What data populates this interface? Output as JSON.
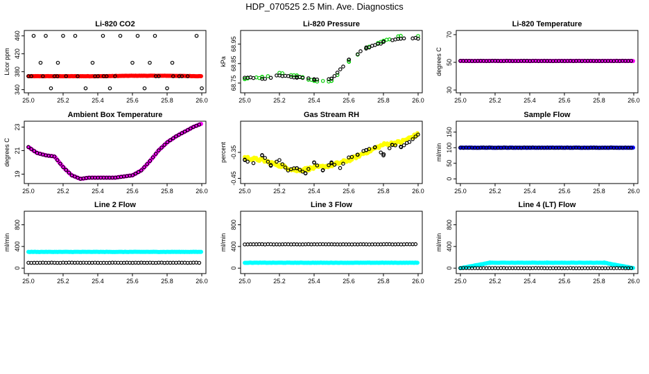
{
  "title": "HDP_070525  2.5 Min. Ave. Diagnostics",
  "chart_data": [
    {
      "type": "scatter",
      "title": "Li-820 CO2",
      "ylabel": "Licor ppm",
      "xlim": [
        25.0,
        26.0
      ],
      "ylim": [
        333,
        472
      ],
      "x_ticks": [
        "25.0",
        "25.2",
        "25.4",
        "25.6",
        "25.8",
        "26.0"
      ],
      "y_ticks": [
        340,
        380,
        420,
        460
      ],
      "series": [
        {
          "color": "#ff0000",
          "style": "filled",
          "values": [
            [
              25.0,
              370
            ],
            [
              25.2,
              370
            ],
            [
              25.4,
              370
            ],
            [
              25.6,
              371
            ],
            [
              25.8,
              371
            ],
            [
              26.0,
              370
            ]
          ]
        },
        {
          "color": "#000000",
          "style": "open",
          "values": [
            [
              25.0,
              370
            ],
            [
              25.03,
              460
            ],
            [
              25.07,
              400
            ],
            [
              25.1,
              460
            ],
            [
              25.13,
              343
            ],
            [
              25.17,
              400
            ],
            [
              25.2,
              460
            ],
            [
              25.27,
              460
            ],
            [
              25.33,
              343
            ],
            [
              25.37,
              400
            ],
            [
              25.43,
              460
            ],
            [
              25.47,
              343
            ],
            [
              25.5,
              370
            ],
            [
              25.53,
              460
            ],
            [
              25.6,
              400
            ],
            [
              25.63,
              460
            ],
            [
              25.67,
              343
            ],
            [
              25.7,
              400
            ],
            [
              25.73,
              460
            ],
            [
              25.8,
              343
            ],
            [
              25.83,
              400
            ],
            [
              25.87,
              370
            ],
            [
              25.97,
              460
            ],
            [
              26.0,
              343
            ]
          ]
        }
      ]
    },
    {
      "type": "scatter",
      "title": "Li-820 Pressure",
      "ylabel": "kPa",
      "xlim": [
        25.0,
        26.0
      ],
      "ylim": [
        68.7,
        69.02
      ],
      "x_ticks": [
        "25.0",
        "25.2",
        "25.4",
        "25.6",
        "25.8",
        "26.0"
      ],
      "y_ticks": [
        "68.75",
        "68.85",
        "68.95"
      ],
      "series": [
        {
          "color": "#00cc00",
          "style": "open",
          "values": [
            [
              25.0,
              68.77
            ],
            [
              25.1,
              68.78
            ],
            [
              25.2,
              68.8
            ],
            [
              25.3,
              68.79
            ],
            [
              25.4,
              68.76
            ],
            [
              25.5,
              68.76
            ],
            [
              25.6,
              68.86
            ],
            [
              25.7,
              68.93
            ],
            [
              25.8,
              68.97
            ],
            [
              25.9,
              68.99
            ],
            [
              26.0,
              68.99
            ]
          ]
        },
        {
          "color": "#000000",
          "style": "open",
          "values": [
            [
              25.0,
              68.78
            ],
            [
              25.1,
              68.77
            ],
            [
              25.2,
              68.79
            ],
            [
              25.3,
              68.78
            ],
            [
              25.4,
              68.77
            ],
            [
              25.5,
              68.77
            ],
            [
              25.6,
              68.87
            ],
            [
              25.7,
              68.93
            ],
            [
              25.8,
              68.96
            ],
            [
              25.9,
              68.98
            ],
            [
              26.0,
              68.98
            ]
          ]
        }
      ]
    },
    {
      "type": "scatter",
      "title": "Li-820 Temperature",
      "ylabel": "degrees C",
      "xlim": [
        25.0,
        26.0
      ],
      "ylim": [
        28,
        73
      ],
      "x_ticks": [
        "25.0",
        "25.2",
        "25.4",
        "25.6",
        "25.8",
        "26.0"
      ],
      "y_ticks": [
        30,
        50,
        70
      ],
      "series": [
        {
          "color": "#ff00ff",
          "style": "filled",
          "values": [
            [
              25.0,
              51.0
            ],
            [
              26.0,
              51.0
            ]
          ]
        },
        {
          "color": "#000000",
          "style": "open",
          "values": [
            [
              25.0,
              51.0
            ],
            [
              26.0,
              51.0
            ]
          ]
        }
      ]
    },
    {
      "type": "scatter",
      "title": "Ambient Box Temperature",
      "ylabel": "degrees C",
      "xlim": [
        25.0,
        26.0
      ],
      "ylim": [
        18.2,
        23.5
      ],
      "x_ticks": [
        "25.0",
        "25.2",
        "25.4",
        "25.6",
        "25.8",
        "26.0"
      ],
      "y_ticks": [
        19,
        21,
        23
      ],
      "series": [
        {
          "color": "#ff00ff",
          "style": "filled",
          "values": [
            [
              25.0,
              21.3
            ],
            [
              25.05,
              20.8
            ],
            [
              25.1,
              20.6
            ],
            [
              25.15,
              20.5
            ],
            [
              25.2,
              19.6
            ],
            [
              25.25,
              18.9
            ],
            [
              25.3,
              18.6
            ],
            [
              25.35,
              18.7
            ],
            [
              25.4,
              18.7
            ],
            [
              25.5,
              18.7
            ],
            [
              25.6,
              18.9
            ],
            [
              25.65,
              19.3
            ],
            [
              25.7,
              20.1
            ],
            [
              25.75,
              21.0
            ],
            [
              25.8,
              21.7
            ],
            [
              25.85,
              22.2
            ],
            [
              25.9,
              22.6
            ],
            [
              25.95,
              23.0
            ],
            [
              26.0,
              23.3
            ]
          ]
        },
        {
          "color": "#000000",
          "style": "open",
          "values": [
            [
              25.0,
              21.3
            ],
            [
              25.05,
              20.8
            ],
            [
              25.1,
              20.6
            ],
            [
              25.15,
              20.5
            ],
            [
              25.2,
              19.6
            ],
            [
              25.25,
              18.9
            ],
            [
              25.3,
              18.6
            ],
            [
              25.35,
              18.7
            ],
            [
              25.4,
              18.7
            ],
            [
              25.5,
              18.7
            ],
            [
              25.6,
              18.9
            ],
            [
              25.65,
              19.3
            ],
            [
              25.7,
              20.1
            ],
            [
              25.75,
              21.0
            ],
            [
              25.8,
              21.7
            ],
            [
              25.85,
              22.2
            ],
            [
              25.9,
              22.6
            ],
            [
              25.95,
              23.0
            ],
            [
              26.0,
              23.3
            ]
          ]
        }
      ]
    },
    {
      "type": "scatter",
      "title": "Gas Stream RH",
      "ylabel": "percent",
      "xlim": [
        25.0,
        26.0
      ],
      "ylim": [
        -0.47,
        -0.23
      ],
      "x_ticks": [
        "25.0",
        "25.2",
        "25.4",
        "25.6",
        "25.8",
        "26.0"
      ],
      "y_ticks": [
        "-0.45",
        "-0.35"
      ],
      "series": [
        {
          "color": "#ffff00",
          "style": "filled",
          "values": [
            [
              25.0,
              -0.37
            ],
            [
              25.1,
              -0.38
            ],
            [
              25.2,
              -0.4
            ],
            [
              25.3,
              -0.42
            ],
            [
              25.4,
              -0.41
            ],
            [
              25.5,
              -0.4
            ],
            [
              25.6,
              -0.38
            ],
            [
              25.7,
              -0.35
            ],
            [
              25.8,
              -0.32
            ],
            [
              25.9,
              -0.31
            ],
            [
              26.0,
              -0.28
            ]
          ]
        },
        {
          "color": "#000000",
          "style": "open",
          "values": [
            [
              25.0,
              -0.38
            ],
            [
              25.05,
              -0.39
            ],
            [
              25.1,
              -0.36
            ],
            [
              25.15,
              -0.4
            ],
            [
              25.2,
              -0.38
            ],
            [
              25.25,
              -0.42
            ],
            [
              25.3,
              -0.41
            ],
            [
              25.35,
              -0.43
            ],
            [
              25.4,
              -0.39
            ],
            [
              25.45,
              -0.42
            ],
            [
              25.5,
              -0.39
            ],
            [
              25.55,
              -0.41
            ],
            [
              25.6,
              -0.37
            ],
            [
              25.65,
              -0.36
            ],
            [
              25.7,
              -0.34
            ],
            [
              25.75,
              -0.33
            ],
            [
              25.8,
              -0.36
            ],
            [
              25.85,
              -0.32
            ],
            [
              25.9,
              -0.33
            ],
            [
              25.95,
              -0.31
            ],
            [
              26.0,
              -0.28
            ]
          ]
        }
      ]
    },
    {
      "type": "scatter",
      "title": "Sample Flow",
      "ylabel": "ml/min",
      "xlim": [
        25.0,
        26.0
      ],
      "ylim": [
        -15,
        185
      ],
      "x_ticks": [
        "25.0",
        "25.2",
        "25.4",
        "25.6",
        "25.8",
        "26.0"
      ],
      "y_ticks": [
        0,
        50,
        100,
        150
      ],
      "series": [
        {
          "color": "#0000ff",
          "style": "filled",
          "values": [
            [
              25.0,
              100
            ],
            [
              26.0,
              100
            ]
          ]
        },
        {
          "color": "#000000",
          "style": "open",
          "values": [
            [
              25.0,
              100
            ],
            [
              26.0,
              100
            ]
          ]
        }
      ]
    },
    {
      "type": "scatter",
      "title": "Line 2 Flow",
      "ylabel": "ml/min",
      "xlim": [
        25.0,
        26.0
      ],
      "ylim": [
        -100,
        1050
      ],
      "x_ticks": [
        "25.0",
        "25.2",
        "25.4",
        "25.6",
        "25.8",
        "26.0"
      ],
      "y_ticks": [
        0,
        400,
        800
      ],
      "series": [
        {
          "color": "#00ffff",
          "style": "filled",
          "values": [
            [
              25.0,
              300
            ],
            [
              26.0,
              300
            ]
          ]
        },
        {
          "color": "#000000",
          "style": "open",
          "values": [
            [
              25.0,
              100
            ],
            [
              26.0,
              100
            ]
          ]
        }
      ]
    },
    {
      "type": "scatter",
      "title": "Line 3 Flow",
      "ylabel": "ml/min",
      "xlim": [
        25.0,
        26.0
      ],
      "ylim": [
        -100,
        1050
      ],
      "x_ticks": [
        "25.0",
        "25.2",
        "25.4",
        "25.6",
        "25.8",
        "26.0"
      ],
      "y_ticks": [
        0,
        400,
        800
      ],
      "series": [
        {
          "color": "#00ffff",
          "style": "filled",
          "values": [
            [
              25.0,
              100
            ],
            [
              26.0,
              100
            ]
          ]
        },
        {
          "color": "#000000",
          "style": "open",
          "values": [
            [
              25.0,
              440
            ],
            [
              26.0,
              440
            ]
          ]
        }
      ]
    },
    {
      "type": "scatter",
      "title": "Line 4 (LT) Flow",
      "ylabel": "ml/min",
      "xlim": [
        25.0,
        26.0
      ],
      "ylim": [
        -100,
        1050
      ],
      "x_ticks": [
        "25.0",
        "25.2",
        "25.4",
        "25.6",
        "25.8",
        "26.0"
      ],
      "y_ticks": [
        0,
        400,
        800
      ],
      "series": [
        {
          "color": "#00ffff",
          "style": "filled",
          "values": [
            [
              25.0,
              0
            ],
            [
              25.17,
              100
            ],
            [
              25.5,
              100
            ],
            [
              25.83,
              100
            ],
            [
              26.0,
              0
            ]
          ]
        },
        {
          "color": "#000000",
          "style": "open",
          "values": [
            [
              25.0,
              0
            ],
            [
              26.0,
              0
            ]
          ]
        }
      ]
    }
  ]
}
